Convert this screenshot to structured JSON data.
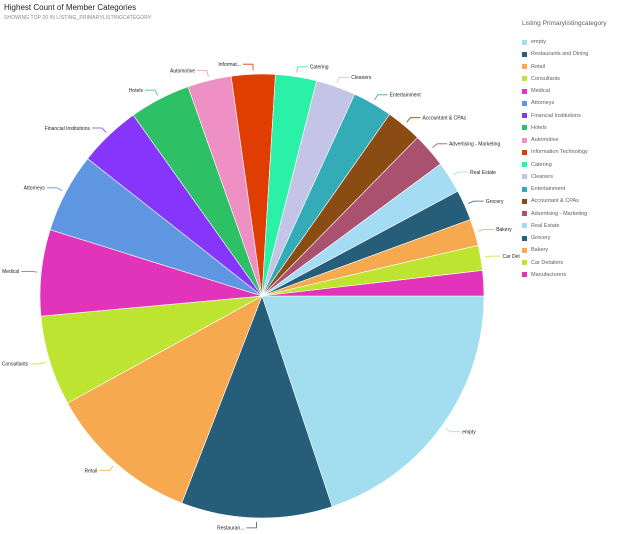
{
  "header": {
    "title": "Highest Count of Member Categories",
    "subtitle": "SHOWING TOP 20 IN LISTING_PRIMARYLISTINGCATEGORY"
  },
  "legend": {
    "title": "Listing Primarylistingcategory"
  },
  "chart_data": {
    "type": "pie",
    "start_angle_deg": 0,
    "direction": "clockwise",
    "legend_position": "right",
    "slices": [
      {
        "name": "empty",
        "label": "empty",
        "value": 20.6,
        "color": "#A2DEF0"
      },
      {
        "name": "Restaurants and Dining",
        "label": "Restauran...",
        "value": 11.4,
        "color": "#265E7A"
      },
      {
        "name": "Retail",
        "label": "Retail",
        "value": 11.5,
        "color": "#F7A94F"
      },
      {
        "name": "Consultants",
        "label": "Consultants",
        "value": 6.8,
        "color": "#BDE430"
      },
      {
        "name": "Medical",
        "label": "Medical",
        "value": 6.5,
        "color": "#E234BA"
      },
      {
        "name": "Attorneys",
        "label": "Attorneys",
        "value": 6.0,
        "color": "#5F96E2"
      },
      {
        "name": "Financial Institutions",
        "label": "Financial Institutions",
        "value": 4.7,
        "color": "#8636FA"
      },
      {
        "name": "Hotels",
        "label": "Hotels",
        "value": 4.6,
        "color": "#2EC064"
      },
      {
        "name": "Automotive",
        "label": "Automotive",
        "value": 3.3,
        "color": "#EF90C5"
      },
      {
        "name": "Information Technology",
        "label": "Informat...",
        "value": 3.3,
        "color": "#E03D03"
      },
      {
        "name": "Catering",
        "label": "Catering",
        "value": 3.1,
        "color": "#2BF0A8"
      },
      {
        "name": "Cleaners",
        "label": "Cleaners",
        "value": 3.0,
        "color": "#C4C5E6"
      },
      {
        "name": "Entertainment",
        "label": "Entertainment",
        "value": 3.0,
        "color": "#33ACB8"
      },
      {
        "name": "Accountant & CPAs",
        "label": "Accountant & CPAs",
        "value": 2.7,
        "color": "#8A4C13"
      },
      {
        "name": "Advertising - Marketing",
        "label": "Advertising - Marketing",
        "value": 2.6,
        "color": "#A9516E"
      },
      {
        "name": "Real Estate",
        "label": "Real Estate",
        "value": 2.4,
        "color": "#A4DCF3"
      },
      {
        "name": "Grocery",
        "label": "Grocery",
        "value": 2.3,
        "color": "#265E7A"
      },
      {
        "name": "Bakery",
        "label": "Bakery",
        "value": 2.0,
        "color": "#F7A94F"
      },
      {
        "name": "Car Detailers",
        "label": "Car Detailers",
        "value": 1.9,
        "color": "#BDE430"
      },
      {
        "name": "Manufacturers",
        "label": "",
        "value": 1.9,
        "color": "#E234BA"
      }
    ]
  }
}
